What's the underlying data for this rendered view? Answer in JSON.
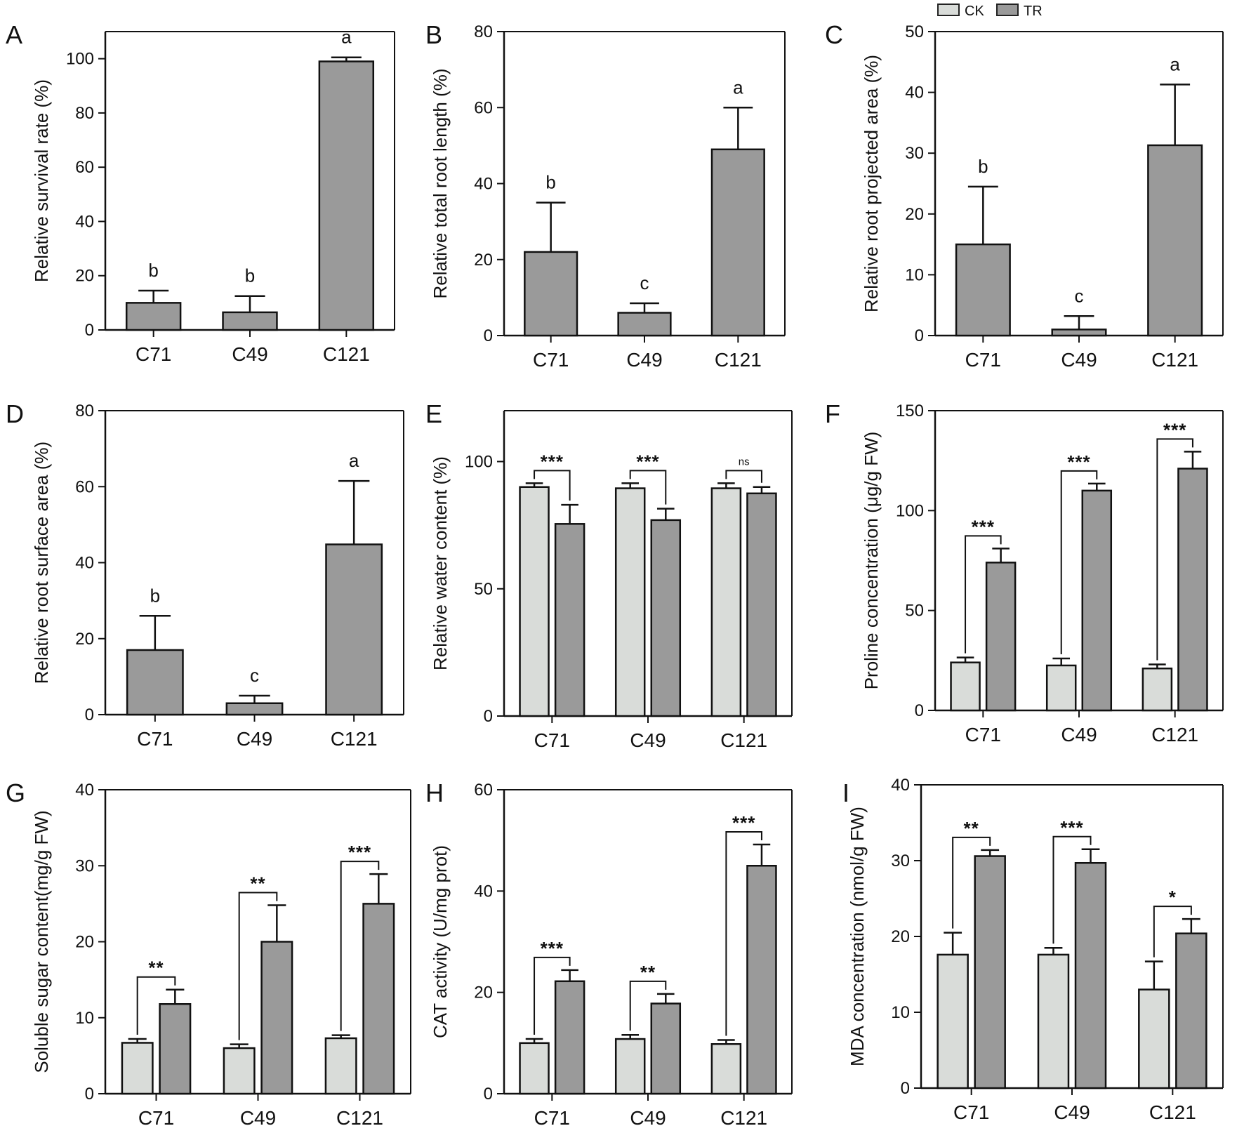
{
  "legend": {
    "entries": [
      {
        "label": "CK",
        "color": "#d9dcd9"
      },
      {
        "label": "TR",
        "color": "#9a9a9a"
      }
    ]
  },
  "colors": {
    "single_bar": "#9a9a9a",
    "ck_bar": "#d9dcd9",
    "tr_bar": "#9a9a9a",
    "ink": "#111111"
  },
  "chart_data": [
    {
      "panel": "A",
      "type": "bar",
      "categories": [
        "C71",
        "C49",
        "C121"
      ],
      "series": [
        {
          "name": "",
          "values": [
            10,
            6.5,
            99
          ],
          "errors": [
            4.5,
            6,
            1.5
          ]
        }
      ],
      "letters": [
        "b",
        "b",
        "a"
      ],
      "ylabel": "Relative survival rate  (%)",
      "ylim": [
        0,
        110
      ],
      "yticks": [
        0,
        20,
        40,
        60,
        80,
        100
      ]
    },
    {
      "panel": "B",
      "type": "bar",
      "categories": [
        "C71",
        "C49",
        "C121"
      ],
      "series": [
        {
          "name": "",
          "values": [
            22,
            6,
            49
          ],
          "errors": [
            13,
            2.5,
            11
          ]
        }
      ],
      "letters": [
        "b",
        "c",
        "a"
      ],
      "ylabel": "Relative total root length  (%)",
      "ylim": [
        0,
        80
      ],
      "yticks": [
        0,
        20,
        40,
        60,
        80
      ]
    },
    {
      "panel": "C",
      "type": "bar",
      "categories": [
        "C71",
        "C49",
        "C121"
      ],
      "series": [
        {
          "name": "",
          "values": [
            15,
            1,
            31.3
          ],
          "errors": [
            9.5,
            2.2,
            10
          ]
        }
      ],
      "letters": [
        "b",
        "c",
        "a"
      ],
      "ylabel": "Relative root projected area (%)",
      "ylim": [
        0,
        50
      ],
      "yticks": [
        0,
        10,
        20,
        30,
        40,
        50
      ]
    },
    {
      "panel": "D",
      "type": "bar",
      "categories": [
        "C71",
        "C49",
        "C121"
      ],
      "series": [
        {
          "name": "",
          "values": [
            17,
            3,
            44.8
          ],
          "errors": [
            9,
            2,
            16.7
          ]
        }
      ],
      "letters": [
        "b",
        "c",
        "a"
      ],
      "ylabel": "Relative root surface area (%)",
      "ylim": [
        0,
        80
      ],
      "yticks": [
        0,
        20,
        40,
        60,
        80
      ]
    },
    {
      "panel": "E",
      "type": "bar",
      "categories": [
        "C71",
        "C49",
        "C121"
      ],
      "series": [
        {
          "name": "CK",
          "values": [
            90,
            89.5,
            89.5
          ],
          "errors": [
            1.5,
            2,
            2
          ]
        },
        {
          "name": "TR",
          "values": [
            75.5,
            77,
            87.5
          ],
          "errors": [
            7.5,
            4.5,
            2.5
          ]
        }
      ],
      "significance": [
        "***",
        "***",
        "ns"
      ],
      "ylabel": "Relative water content (%)",
      "ylim": [
        0,
        120
      ],
      "yticks": [
        0,
        50,
        100
      ]
    },
    {
      "panel": "F",
      "type": "bar",
      "categories": [
        "C71",
        "C49",
        "C121"
      ],
      "series": [
        {
          "name": "CK",
          "values": [
            24,
            22.5,
            21
          ],
          "errors": [
            2.5,
            3.5,
            2
          ]
        },
        {
          "name": "TR",
          "values": [
            74,
            110,
            121
          ],
          "errors": [
            7,
            3.5,
            8.5
          ]
        }
      ],
      "significance": [
        "***",
        "***",
        "***"
      ],
      "ylabel": "Proline concentration (μg/g FW)",
      "ylim": [
        0,
        150
      ],
      "yticks": [
        0,
        50,
        100,
        150
      ]
    },
    {
      "panel": "G",
      "type": "bar",
      "categories": [
        "C71",
        "C49",
        "C121"
      ],
      "series": [
        {
          "name": "CK",
          "values": [
            6.7,
            6,
            7.3
          ],
          "errors": [
            0.5,
            0.5,
            0.4
          ]
        },
        {
          "name": "TR",
          "values": [
            11.8,
            20,
            25
          ],
          "errors": [
            1.9,
            4.8,
            3.9
          ]
        }
      ],
      "significance": [
        "**",
        "**",
        "***"
      ],
      "ylabel": "Soluble sugar content(mg/g FW)",
      "ylim": [
        0,
        40
      ],
      "yticks": [
        0,
        10,
        20,
        30,
        40
      ]
    },
    {
      "panel": "H",
      "type": "bar",
      "categories": [
        "C71",
        "C49",
        "C121"
      ],
      "series": [
        {
          "name": "CK",
          "values": [
            10,
            10.8,
            9.8
          ],
          "errors": [
            0.8,
            0.8,
            0.8
          ]
        },
        {
          "name": "TR",
          "values": [
            22.2,
            17.8,
            45
          ],
          "errors": [
            2.2,
            1.9,
            4.2
          ]
        }
      ],
      "significance": [
        "***",
        "**",
        "***"
      ],
      "ylabel": "CAT activity (U/mg prot)",
      "ylim": [
        0,
        60
      ],
      "yticks": [
        0,
        20,
        40,
        60
      ]
    },
    {
      "panel": "I",
      "type": "bar",
      "categories": [
        "C71",
        "C49",
        "C121"
      ],
      "series": [
        {
          "name": "CK",
          "values": [
            17.6,
            17.6,
            13
          ],
          "errors": [
            2.9,
            0.9,
            3.7
          ]
        },
        {
          "name": "TR",
          "values": [
            30.6,
            29.7,
            20.4
          ],
          "errors": [
            0.8,
            1.8,
            1.9
          ]
        }
      ],
      "significance": [
        "**",
        "***",
        "*"
      ],
      "ylabel": "MDA concentration (nmol/g FW)",
      "ylim": [
        0,
        40
      ],
      "yticks": [
        0,
        10,
        20,
        30,
        40
      ]
    }
  ]
}
